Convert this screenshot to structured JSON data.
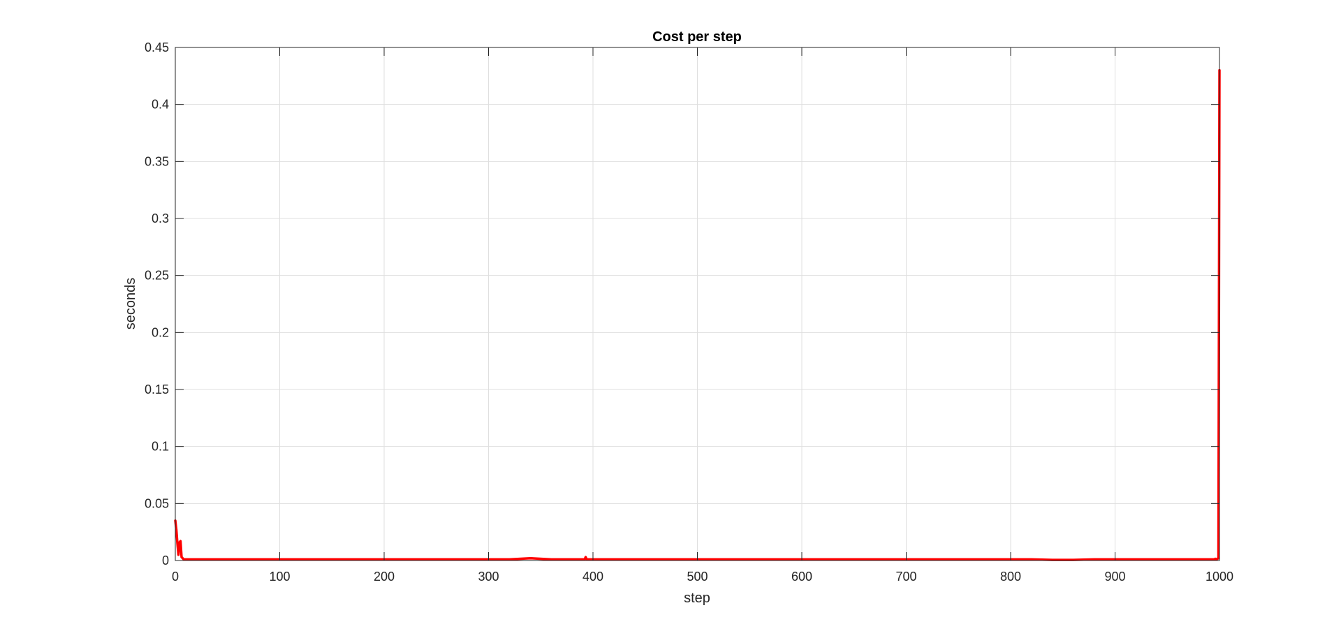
{
  "chart_data": {
    "type": "line",
    "title": "Cost per step",
    "xlabel": "step",
    "ylabel": "seconds",
    "xlim": [
      0,
      1000
    ],
    "ylim": [
      0,
      0.45
    ],
    "x_ticks": [
      0,
      100,
      200,
      300,
      400,
      500,
      600,
      700,
      800,
      900,
      1000
    ],
    "x_tick_labels": [
      "0",
      "100",
      "200",
      "300",
      "400",
      "500",
      "600",
      "700",
      "800",
      "900",
      "1000"
    ],
    "y_ticks": [
      0,
      0.05,
      0.1,
      0.15,
      0.2,
      0.25,
      0.3,
      0.35,
      0.4,
      0.45
    ],
    "y_tick_labels": [
      "0",
      "0.05",
      "0.1",
      "0.15",
      "0.2",
      "0.25",
      "0.3",
      "0.35",
      "0.4",
      "0.45"
    ],
    "grid": true,
    "box": "left-bottom-top-right",
    "series": [
      {
        "color": "#ff0000",
        "x": [
          0,
          1,
          2,
          3,
          4,
          5,
          6,
          7,
          8,
          10,
          12,
          15,
          20,
          40,
          80,
          100,
          120,
          140,
          160,
          200,
          240,
          280,
          300,
          320,
          340,
          360,
          380,
          392,
          393,
          394,
          400,
          440,
          480,
          500,
          540,
          580,
          600,
          640,
          680,
          700,
          740,
          780,
          800,
          820,
          840,
          860,
          880,
          900,
          940,
          980,
          995,
          996,
          997,
          998,
          999,
          1000
        ],
        "y": [
          0.035,
          0.027,
          0.015,
          0.005,
          0.016,
          0.017,
          0.003,
          0.002,
          0.001,
          0.001,
          0.001,
          0.001,
          0.001,
          0.001,
          0.001,
          0.001,
          0.001,
          0.001,
          0.001,
          0.001,
          0.001,
          0.001,
          0.001,
          0.001,
          0.002,
          0.001,
          0.001,
          0.001,
          0.003,
          0.001,
          0.001,
          0.001,
          0.001,
          0.001,
          0.001,
          0.001,
          0.001,
          0.001,
          0.001,
          0.001,
          0.001,
          0.001,
          0.001,
          0.001,
          0.0005,
          0.0005,
          0.001,
          0.001,
          0.001,
          0.001,
          0.001,
          0.0015,
          0.001,
          0.0015,
          0.002,
          0.43
        ]
      }
    ]
  }
}
